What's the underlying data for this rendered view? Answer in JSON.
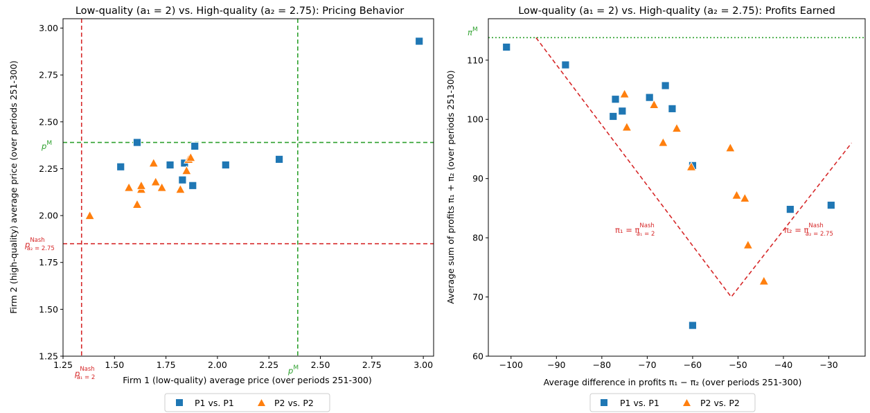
{
  "chart_data": [
    {
      "type": "scatter",
      "title": "Low-quality (a₁ = 2) vs. High-quality (a₂ = 2.75): Pricing Behavior",
      "xlabel": "Firm 1 (low-quality) average price (over periods 251-300)",
      "ylabel": "Firm 2 (high-quality) average price (over periods 251-300)",
      "xlim": [
        1.25,
        3.05
      ],
      "ylim": [
        1.25,
        3.05
      ],
      "xticks": [
        "1.25",
        "1.50",
        "1.75",
        "2.00",
        "2.25",
        "2.50",
        "2.75",
        "3.00"
      ],
      "yticks": [
        "1.25",
        "1.50",
        "1.75",
        "2.00",
        "2.25",
        "2.50",
        "2.75",
        "3.00"
      ],
      "grid": false,
      "legend_position": "below",
      "reference_lines": [
        {
          "orientation": "vertical",
          "value": 1.34,
          "color": "#d62728",
          "style": "dashed",
          "label": "p^Nash a₁=2"
        },
        {
          "orientation": "horizontal",
          "value": 1.85,
          "color": "#d62728",
          "style": "dashed",
          "label": "p^Nash a₂=2.75"
        },
        {
          "orientation": "vertical",
          "value": 2.39,
          "color": "#2ca02c",
          "style": "dashed",
          "label": "p^M"
        },
        {
          "orientation": "horizontal",
          "value": 2.39,
          "color": "#2ca02c",
          "style": "dashed",
          "label": "p^M"
        }
      ],
      "series": [
        {
          "name": "P1 vs. P1",
          "marker": "square",
          "color": "#1f77b4",
          "x": [
            2.98,
            1.61,
            1.89,
            1.53,
            1.77,
            1.84,
            2.04,
            2.3,
            1.83,
            1.88
          ],
          "y": [
            2.93,
            2.39,
            2.37,
            2.26,
            2.27,
            2.28,
            2.27,
            2.3,
            2.19,
            2.16
          ]
        },
        {
          "name": "P2 vs. P2",
          "marker": "triangle",
          "color": "#ff7f0e",
          "x": [
            1.38,
            1.57,
            1.61,
            1.63,
            1.63,
            1.69,
            1.7,
            1.73,
            1.82,
            1.85,
            1.86,
            1.87
          ],
          "y": [
            2.0,
            2.15,
            2.06,
            2.14,
            2.16,
            2.28,
            2.18,
            2.15,
            2.14,
            2.24,
            2.3,
            2.31
          ]
        }
      ]
    },
    {
      "type": "scatter",
      "title": "Low-quality (a₁ = 2) vs. High-quality (a₂ = 2.75): Profits Earned",
      "xlabel": "Average difference in profits π₁ − π₂ (over periods 251-300)",
      "ylabel": "Average sum of profits π₁ + π₂ (over periods 251-300)",
      "xlim": [
        -105,
        -22
      ],
      "ylim": [
        60,
        117
      ],
      "xticks": [
        "−100",
        "−90",
        "−80",
        "−70",
        "−60",
        "−50",
        "−40",
        "−30"
      ],
      "yticks": [
        "60",
        "70",
        "80",
        "90",
        "100",
        "110"
      ],
      "grid": false,
      "legend_position": "below",
      "reference_lines": [
        {
          "orientation": "horizontal",
          "value": 113.8,
          "color": "#2ca02c",
          "style": "dotted",
          "label": "π^M"
        },
        {
          "orientation": "polyline",
          "points": [
            [
              -94.5,
              113.8
            ],
            [
              -51.5,
              70
            ],
            [
              -25,
              96
            ]
          ],
          "color": "#d62728",
          "style": "dashed"
        }
      ],
      "annotations": [
        {
          "text": "π₁ = π^Nash a₁=2",
          "x": -80,
          "y": 80.5
        },
        {
          "text": "π₂ = π^Nash a₂=2.75",
          "x": -33,
          "y": 80.5
        }
      ],
      "series": [
        {
          "name": "P1 vs. P1",
          "marker": "square",
          "color": "#1f77b4",
          "x": [
            -101,
            -88,
            -77,
            -77.5,
            -75.5,
            -69.5,
            -66,
            -64.5,
            -60,
            -38.5,
            -29.5,
            -60
          ],
          "y": [
            112.2,
            109.2,
            103.4,
            100.5,
            101.4,
            103.7,
            105.7,
            101.8,
            92.2,
            84.8,
            85.5,
            65.2
          ]
        },
        {
          "name": "P2 vs. P2",
          "marker": "triangle",
          "color": "#ff7f0e",
          "x": [
            -75,
            -74.5,
            -68.5,
            -66.5,
            -63.5,
            -60.3,
            -51.7,
            -50.3,
            -48.5,
            -47.8,
            -44.3
          ],
          "y": [
            104.3,
            98.7,
            102.5,
            96.1,
            98.5,
            92,
            95.2,
            87.2,
            86.7,
            78.8,
            72.7
          ]
        }
      ]
    }
  ],
  "legend": {
    "p1_label": "P1 vs. P1",
    "p2_label": "P2 vs. P2"
  },
  "labels": {
    "pm": "p",
    "pm_sup": "M",
    "pnash": "p",
    "pnash_sup": "Nash",
    "pnash_sub1": "a₁ = 2",
    "pnash_sub2": "a₂ = 2.75",
    "pim": "π",
    "pim_sup": "M",
    "pi1_eq": "π₁ = π",
    "pi2_eq": "π₂ = π",
    "nash_sup": "Nash",
    "a1_sub": "a₁ = 2",
    "a2_sub": "a₂ = 2.75"
  }
}
